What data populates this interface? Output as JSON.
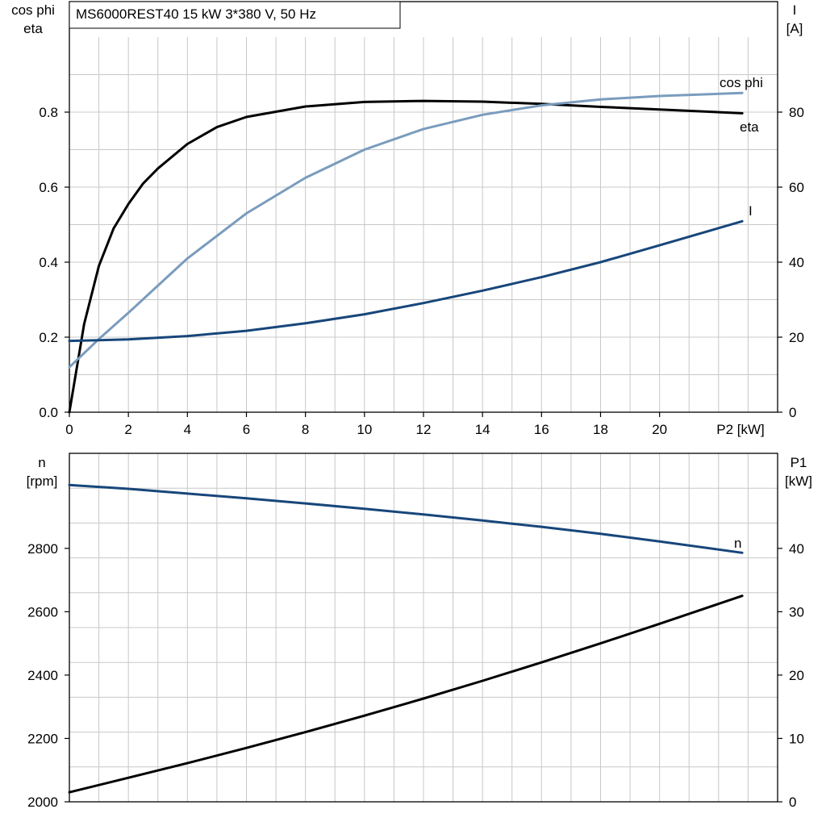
{
  "title": "MS6000REST40   15 kW   3*380 V, 50 Hz",
  "colors": {
    "black": "#000000",
    "dark_blue": "#17467a",
    "light_blue": "#7a9cbd",
    "grid": "#c8c8c8"
  },
  "chart_data": [
    {
      "type": "line",
      "x_label": "P2 [kW]",
      "x_ticks": [
        "0",
        "2",
        "4",
        "6",
        "8",
        "10",
        "12",
        "14",
        "16",
        "18",
        "20"
      ],
      "xlim": [
        0,
        24
      ],
      "y_left_label": [
        "cos phi",
        "eta"
      ],
      "y_left_ticks": [
        "0.0",
        "0.2",
        "0.4",
        "0.6",
        "0.8"
      ],
      "y_left_lim": [
        0,
        1.0
      ],
      "y_right_label": [
        "I",
        "[A]"
      ],
      "y_right_ticks": [
        "0",
        "20",
        "40",
        "60",
        "80"
      ],
      "y_right_lim": [
        0,
        100
      ],
      "grid": true,
      "series": [
        {
          "name": "eta",
          "axis": "left",
          "color": "#000000",
          "x": [
            0,
            0.5,
            1,
            1.5,
            2,
            2.5,
            3,
            4,
            5,
            6,
            8,
            10,
            12,
            14,
            16,
            18,
            20,
            22.8
          ],
          "y": [
            0,
            0.235,
            0.39,
            0.49,
            0.555,
            0.61,
            0.65,
            0.715,
            0.76,
            0.787,
            0.815,
            0.827,
            0.83,
            0.828,
            0.822,
            0.814,
            0.807,
            0.797
          ]
        },
        {
          "name": "cos phi",
          "axis": "left",
          "color": "#7a9cbd",
          "x": [
            0,
            1,
            2,
            4,
            6,
            8,
            10,
            12,
            14,
            16,
            18,
            20,
            22.8
          ],
          "y": [
            0.12,
            0.195,
            0.265,
            0.41,
            0.53,
            0.625,
            0.7,
            0.755,
            0.793,
            0.818,
            0.834,
            0.843,
            0.851
          ]
        },
        {
          "name": "I",
          "axis": "right",
          "color": "#17467a",
          "x": [
            0,
            2,
            4,
            6,
            8,
            10,
            12,
            14,
            16,
            18,
            20,
            22.8
          ],
          "y": [
            19,
            19.4,
            20.3,
            21.7,
            23.7,
            26.1,
            29.1,
            32.4,
            36,
            40,
            44.5,
            50.9
          ]
        }
      ]
    },
    {
      "type": "line",
      "x_label": "",
      "xlim": [
        0,
        24
      ],
      "y_left_label": [
        "n",
        "[rpm]"
      ],
      "y_left_ticks": [
        "2000",
        "2200",
        "2400",
        "2600",
        "2800"
      ],
      "y_left_lim": [
        2000,
        3100
      ],
      "y_right_label": [
        "P1",
        "[kW]"
      ],
      "y_right_ticks": [
        "0",
        "10",
        "20",
        "30",
        "40"
      ],
      "y_right_lim": [
        0,
        55
      ],
      "grid": true,
      "series": [
        {
          "name": "n",
          "axis": "left",
          "color": "#17467a",
          "x": [
            0,
            2,
            4,
            6,
            8,
            10,
            12,
            14,
            16,
            18,
            20,
            22.8
          ],
          "y": [
            3000,
            2988,
            2973,
            2958,
            2942,
            2925,
            2907,
            2888,
            2868,
            2846,
            2822,
            2786
          ]
        },
        {
          "name": "",
          "axis": "right",
          "color": "#000000",
          "x": [
            0,
            2,
            4,
            6,
            8,
            10,
            12,
            14,
            16,
            18,
            20,
            22.8
          ],
          "y": [
            1.5,
            3.8,
            6.1,
            8.5,
            11,
            13.6,
            16.3,
            19.1,
            22,
            25,
            28.1,
            32.5
          ]
        }
      ]
    }
  ]
}
